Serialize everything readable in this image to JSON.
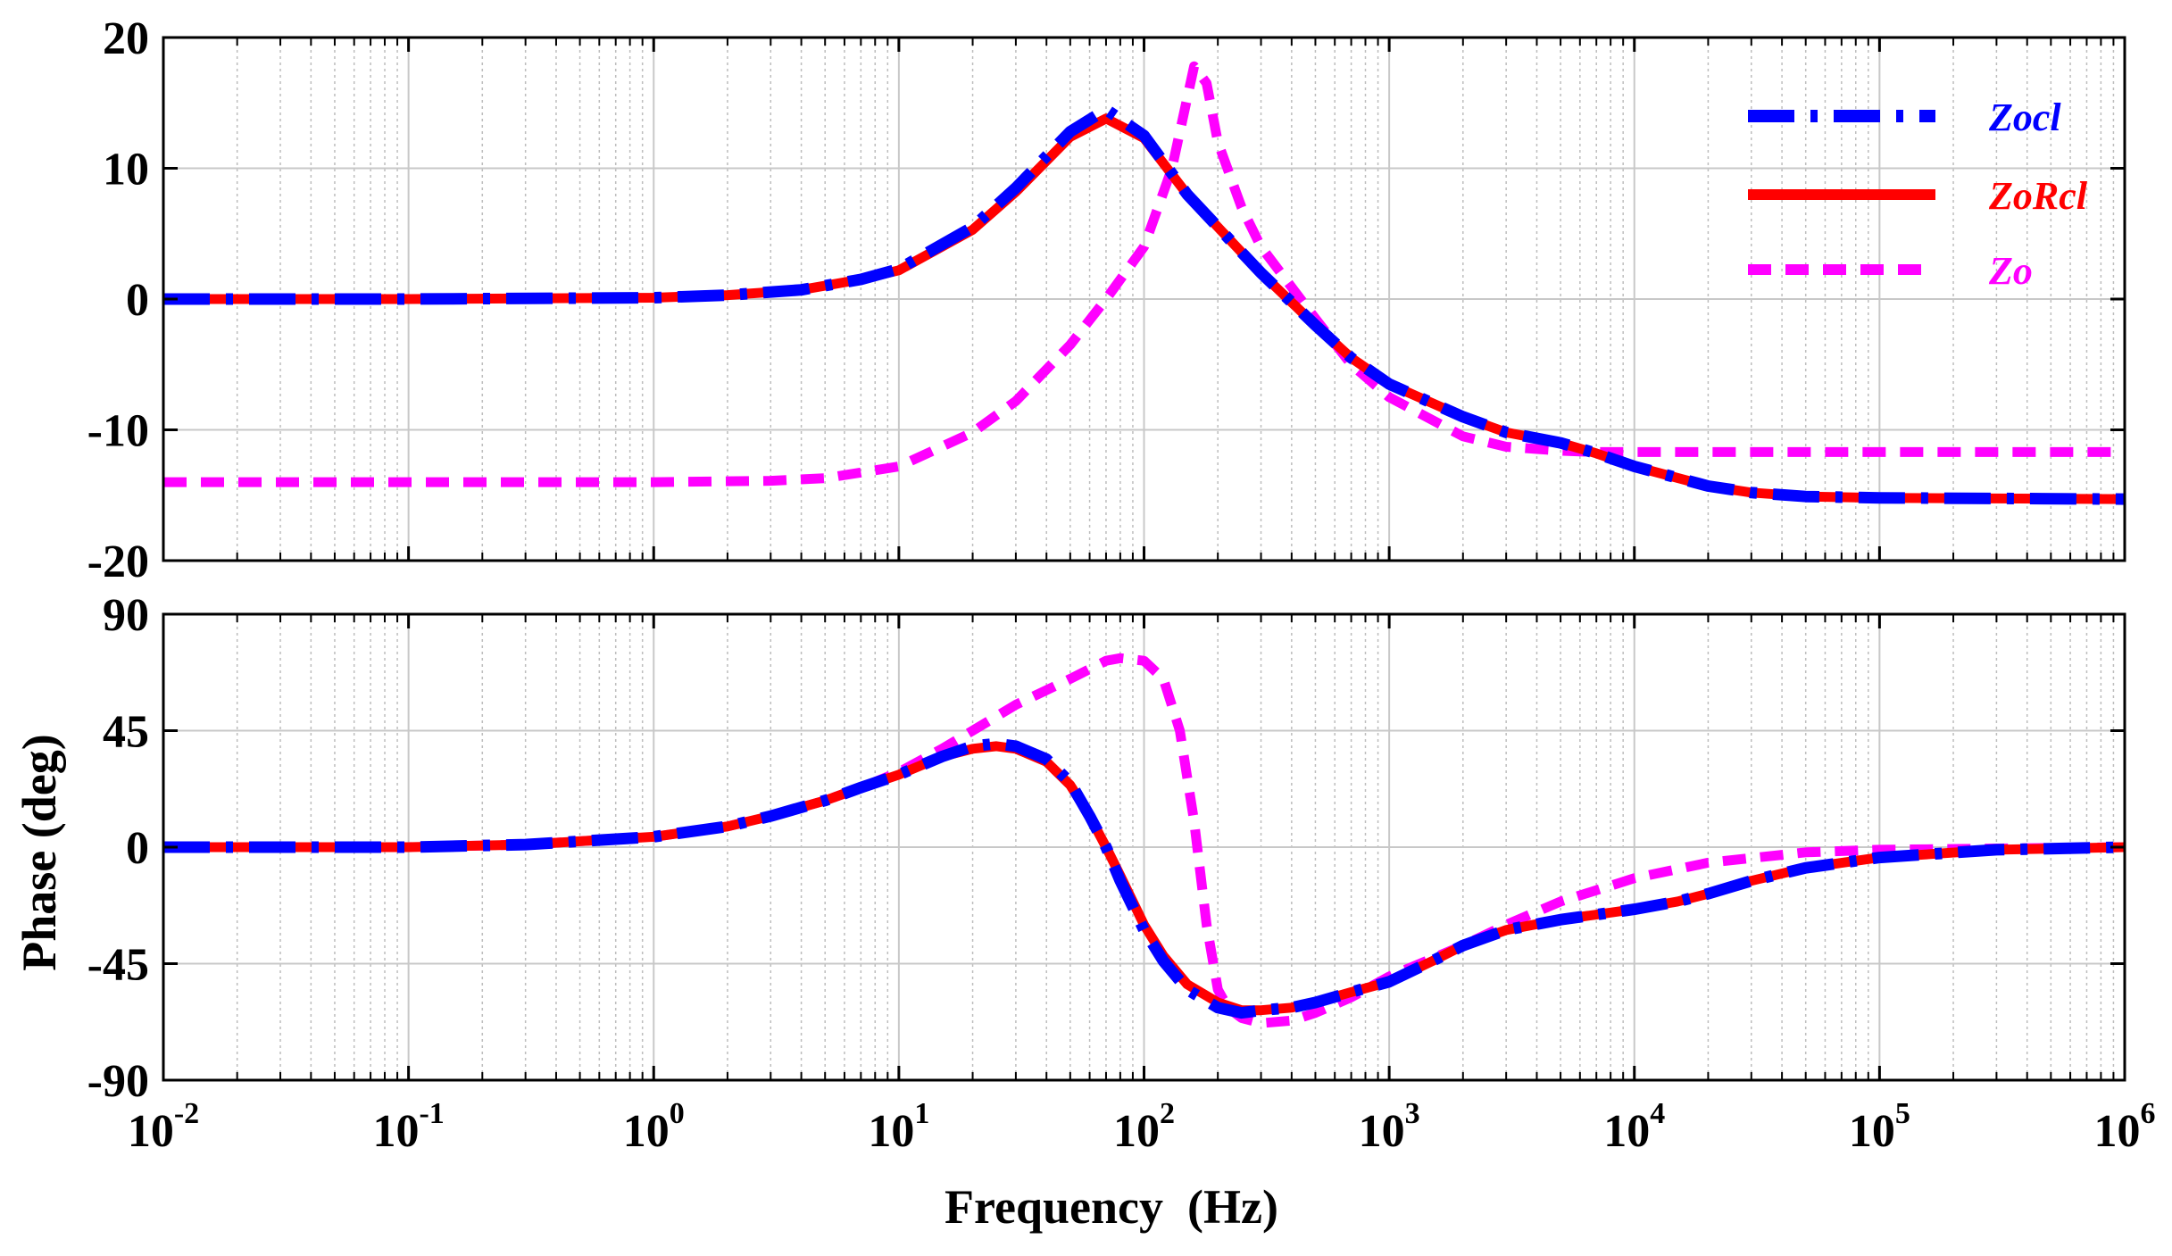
{
  "chart_data": [
    {
      "type": "line",
      "panel": "magnitude",
      "title": "",
      "xlabel": "",
      "ylabel": "",
      "xscale": "log",
      "xlim": [
        0.01,
        1000000
      ],
      "ylim": [
        -20,
        20
      ],
      "yticks": [
        "20",
        "10",
        "0",
        "-10",
        "-20"
      ],
      "grid": true,
      "legend_position": "top-right",
      "series": [
        {
          "name": "Zocl",
          "color": "#0000ff",
          "style": "dash-dot",
          "x": [
            0.01,
            0.1,
            1,
            2,
            4,
            7,
            10,
            20,
            30,
            50,
            70,
            100,
            150,
            200,
            300,
            500,
            700,
            1000,
            2000,
            3000,
            5000,
            7000,
            10000,
            20000,
            30000,
            50000,
            100000,
            1000000
          ],
          "y": [
            0,
            0,
            0.1,
            0.3,
            0.7,
            1.5,
            2.3,
            5.5,
            8.5,
            12.8,
            14.5,
            12.5,
            8,
            5.5,
            2,
            -2,
            -4.5,
            -6.5,
            -9,
            -10.2,
            -11,
            -11.8,
            -12.8,
            -14.3,
            -14.8,
            -15.1,
            -15.2,
            -15.3
          ]
        },
        {
          "name": "ZoRcl",
          "color": "#ff0000",
          "style": "solid",
          "x": [
            0.01,
            0.1,
            1,
            2,
            4,
            7,
            10,
            20,
            30,
            50,
            70,
            100,
            150,
            200,
            300,
            500,
            700,
            1000,
            2000,
            3000,
            5000,
            7000,
            10000,
            20000,
            30000,
            50000,
            100000,
            1000000
          ],
          "y": [
            0,
            0,
            0.1,
            0.3,
            0.7,
            1.5,
            2.2,
            5.3,
            8.2,
            12.4,
            13.8,
            12.3,
            8,
            5.5,
            2,
            -2,
            -4.5,
            -6.5,
            -9,
            -10.2,
            -11,
            -11.8,
            -12.8,
            -14.3,
            -14.8,
            -15.1,
            -15.2,
            -15.3
          ]
        },
        {
          "name": "Zo",
          "color": "#ff00ff",
          "style": "dashed",
          "x": [
            0.01,
            0.1,
            1,
            3,
            5,
            10,
            20,
            30,
            50,
            70,
            100,
            130,
            160,
            180,
            200,
            250,
            300,
            500,
            700,
            1000,
            2000,
            3000,
            5000,
            7000,
            10000,
            100000,
            1000000
          ],
          "y": [
            -14,
            -14,
            -14,
            -13.9,
            -13.7,
            -12.8,
            -10.2,
            -7.8,
            -3.5,
            0,
            4,
            10,
            17.8,
            16.5,
            12,
            7,
            4,
            -1.5,
            -5,
            -7.5,
            -10.5,
            -11.3,
            -11.6,
            -11.7,
            -11.7,
            -11.7,
            -11.7
          ]
        }
      ]
    },
    {
      "type": "line",
      "panel": "phase",
      "title": "",
      "xlabel": "Frequency  (Hz)",
      "ylabel": "Phase (deg)",
      "xscale": "log",
      "xlim": [
        0.01,
        1000000
      ],
      "ylim": [
        -90,
        90
      ],
      "yticks": [
        "90",
        "45",
        "0",
        "-45",
        "-90"
      ],
      "xtick_bases": [
        "10",
        "10",
        "10",
        "10",
        "10",
        "10",
        "10",
        "10",
        "10"
      ],
      "xtick_exponents": [
        "-2",
        "-1",
        "0",
        "1",
        "2",
        "3",
        "4",
        "5",
        "6"
      ],
      "grid": true,
      "series": [
        {
          "name": "Zocl",
          "color": "#0000ff",
          "style": "dash-dot",
          "x": [
            0.01,
            0.1,
            0.3,
            1,
            2,
            3,
            5,
            7,
            10,
            15,
            20,
            25,
            30,
            40,
            50,
            60,
            70,
            80,
            100,
            120,
            150,
            200,
            250,
            300,
            400,
            500,
            700,
            1000,
            1500,
            2000,
            3000,
            5000,
            10000,
            15000,
            20000,
            30000,
            50000,
            100000,
            300000,
            1000000
          ],
          "y": [
            0,
            0,
            1,
            4,
            8,
            12,
            18,
            23,
            28,
            35,
            39,
            40,
            39,
            34,
            25,
            12,
            0,
            -13,
            -32,
            -44,
            -55,
            -62,
            -64,
            -63,
            -62,
            -60,
            -56,
            -52,
            -44,
            -38,
            -32,
            -28,
            -24,
            -21,
            -18,
            -13,
            -8,
            -4,
            -1,
            0
          ]
        },
        {
          "name": "ZoRcl",
          "color": "#ff0000",
          "style": "solid",
          "x": [
            0.01,
            0.1,
            0.3,
            1,
            2,
            3,
            5,
            7,
            10,
            15,
            20,
            25,
            30,
            40,
            50,
            60,
            70,
            80,
            100,
            120,
            150,
            200,
            250,
            300,
            400,
            500,
            700,
            1000,
            1500,
            2000,
            3000,
            5000,
            10000,
            15000,
            20000,
            30000,
            50000,
            100000,
            300000,
            1000000
          ],
          "y": [
            0,
            0,
            1,
            4,
            8,
            12,
            18,
            23,
            28,
            35,
            38,
            39,
            38,
            33,
            24,
            12,
            0,
            -11,
            -30,
            -42,
            -53,
            -60,
            -63,
            -63,
            -62,
            -60,
            -56,
            -52,
            -44,
            -38,
            -32,
            -28,
            -24,
            -21,
            -18,
            -13,
            -8,
            -4,
            -1,
            0
          ]
        },
        {
          "name": "Zo",
          "color": "#ff00ff",
          "style": "dashed",
          "x": [
            0.01,
            0.1,
            0.3,
            1,
            2,
            3,
            5,
            7,
            10,
            15,
            20,
            30,
            50,
            70,
            80,
            100,
            120,
            140,
            160,
            180,
            200,
            220,
            250,
            300,
            400,
            500,
            700,
            1000,
            2000,
            3000,
            5000,
            10000,
            20000,
            50000,
            100000,
            1000000
          ],
          "y": [
            0,
            0,
            1,
            4,
            8,
            12,
            18,
            23,
            29,
            38,
            45,
            55,
            65,
            72,
            73,
            72,
            65,
            45,
            10,
            -30,
            -55,
            -62,
            -66,
            -68,
            -67,
            -64,
            -58,
            -50,
            -38,
            -30,
            -21,
            -12,
            -6,
            -2,
            -1,
            0
          ]
        }
      ]
    }
  ]
}
